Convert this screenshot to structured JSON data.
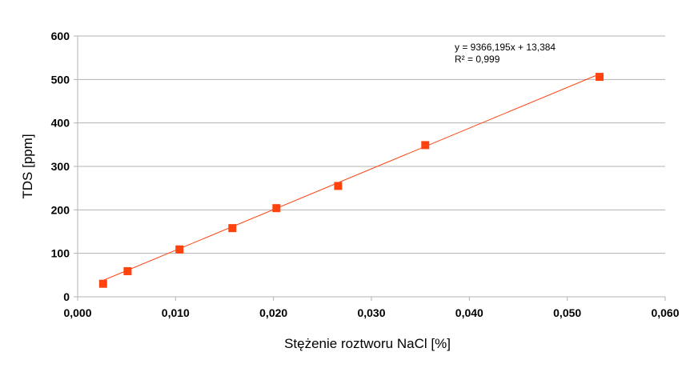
{
  "chart_data": {
    "type": "scatter",
    "xlabel": "Stężenie roztworu NaCl [%]",
    "ylabel": "TDS [ppm]",
    "xlim": [
      0,
      0.06
    ],
    "ylim": [
      0,
      600
    ],
    "x_ticks": [
      "0,000",
      "0,010",
      "0,020",
      "0,030",
      "0,040",
      "0,050",
      "0,060"
    ],
    "y_ticks": [
      "0",
      "100",
      "200",
      "300",
      "400",
      "500",
      "600"
    ],
    "grid": true,
    "marker_color": "#ff420e",
    "trendline_color": "#ff420e",
    "series": [
      {
        "x": [
          0.0026,
          0.0051,
          0.0104,
          0.0158,
          0.0203,
          0.0266,
          0.0355,
          0.0533
        ],
        "y": [
          30,
          59,
          109,
          158,
          204,
          255,
          349,
          506
        ]
      }
    ],
    "trendline": {
      "slope": 9366.195,
      "intercept": 13.384,
      "equation_label": "y = 9366,195x  + 13,384",
      "r2_label": "R² = 0,999"
    }
  }
}
